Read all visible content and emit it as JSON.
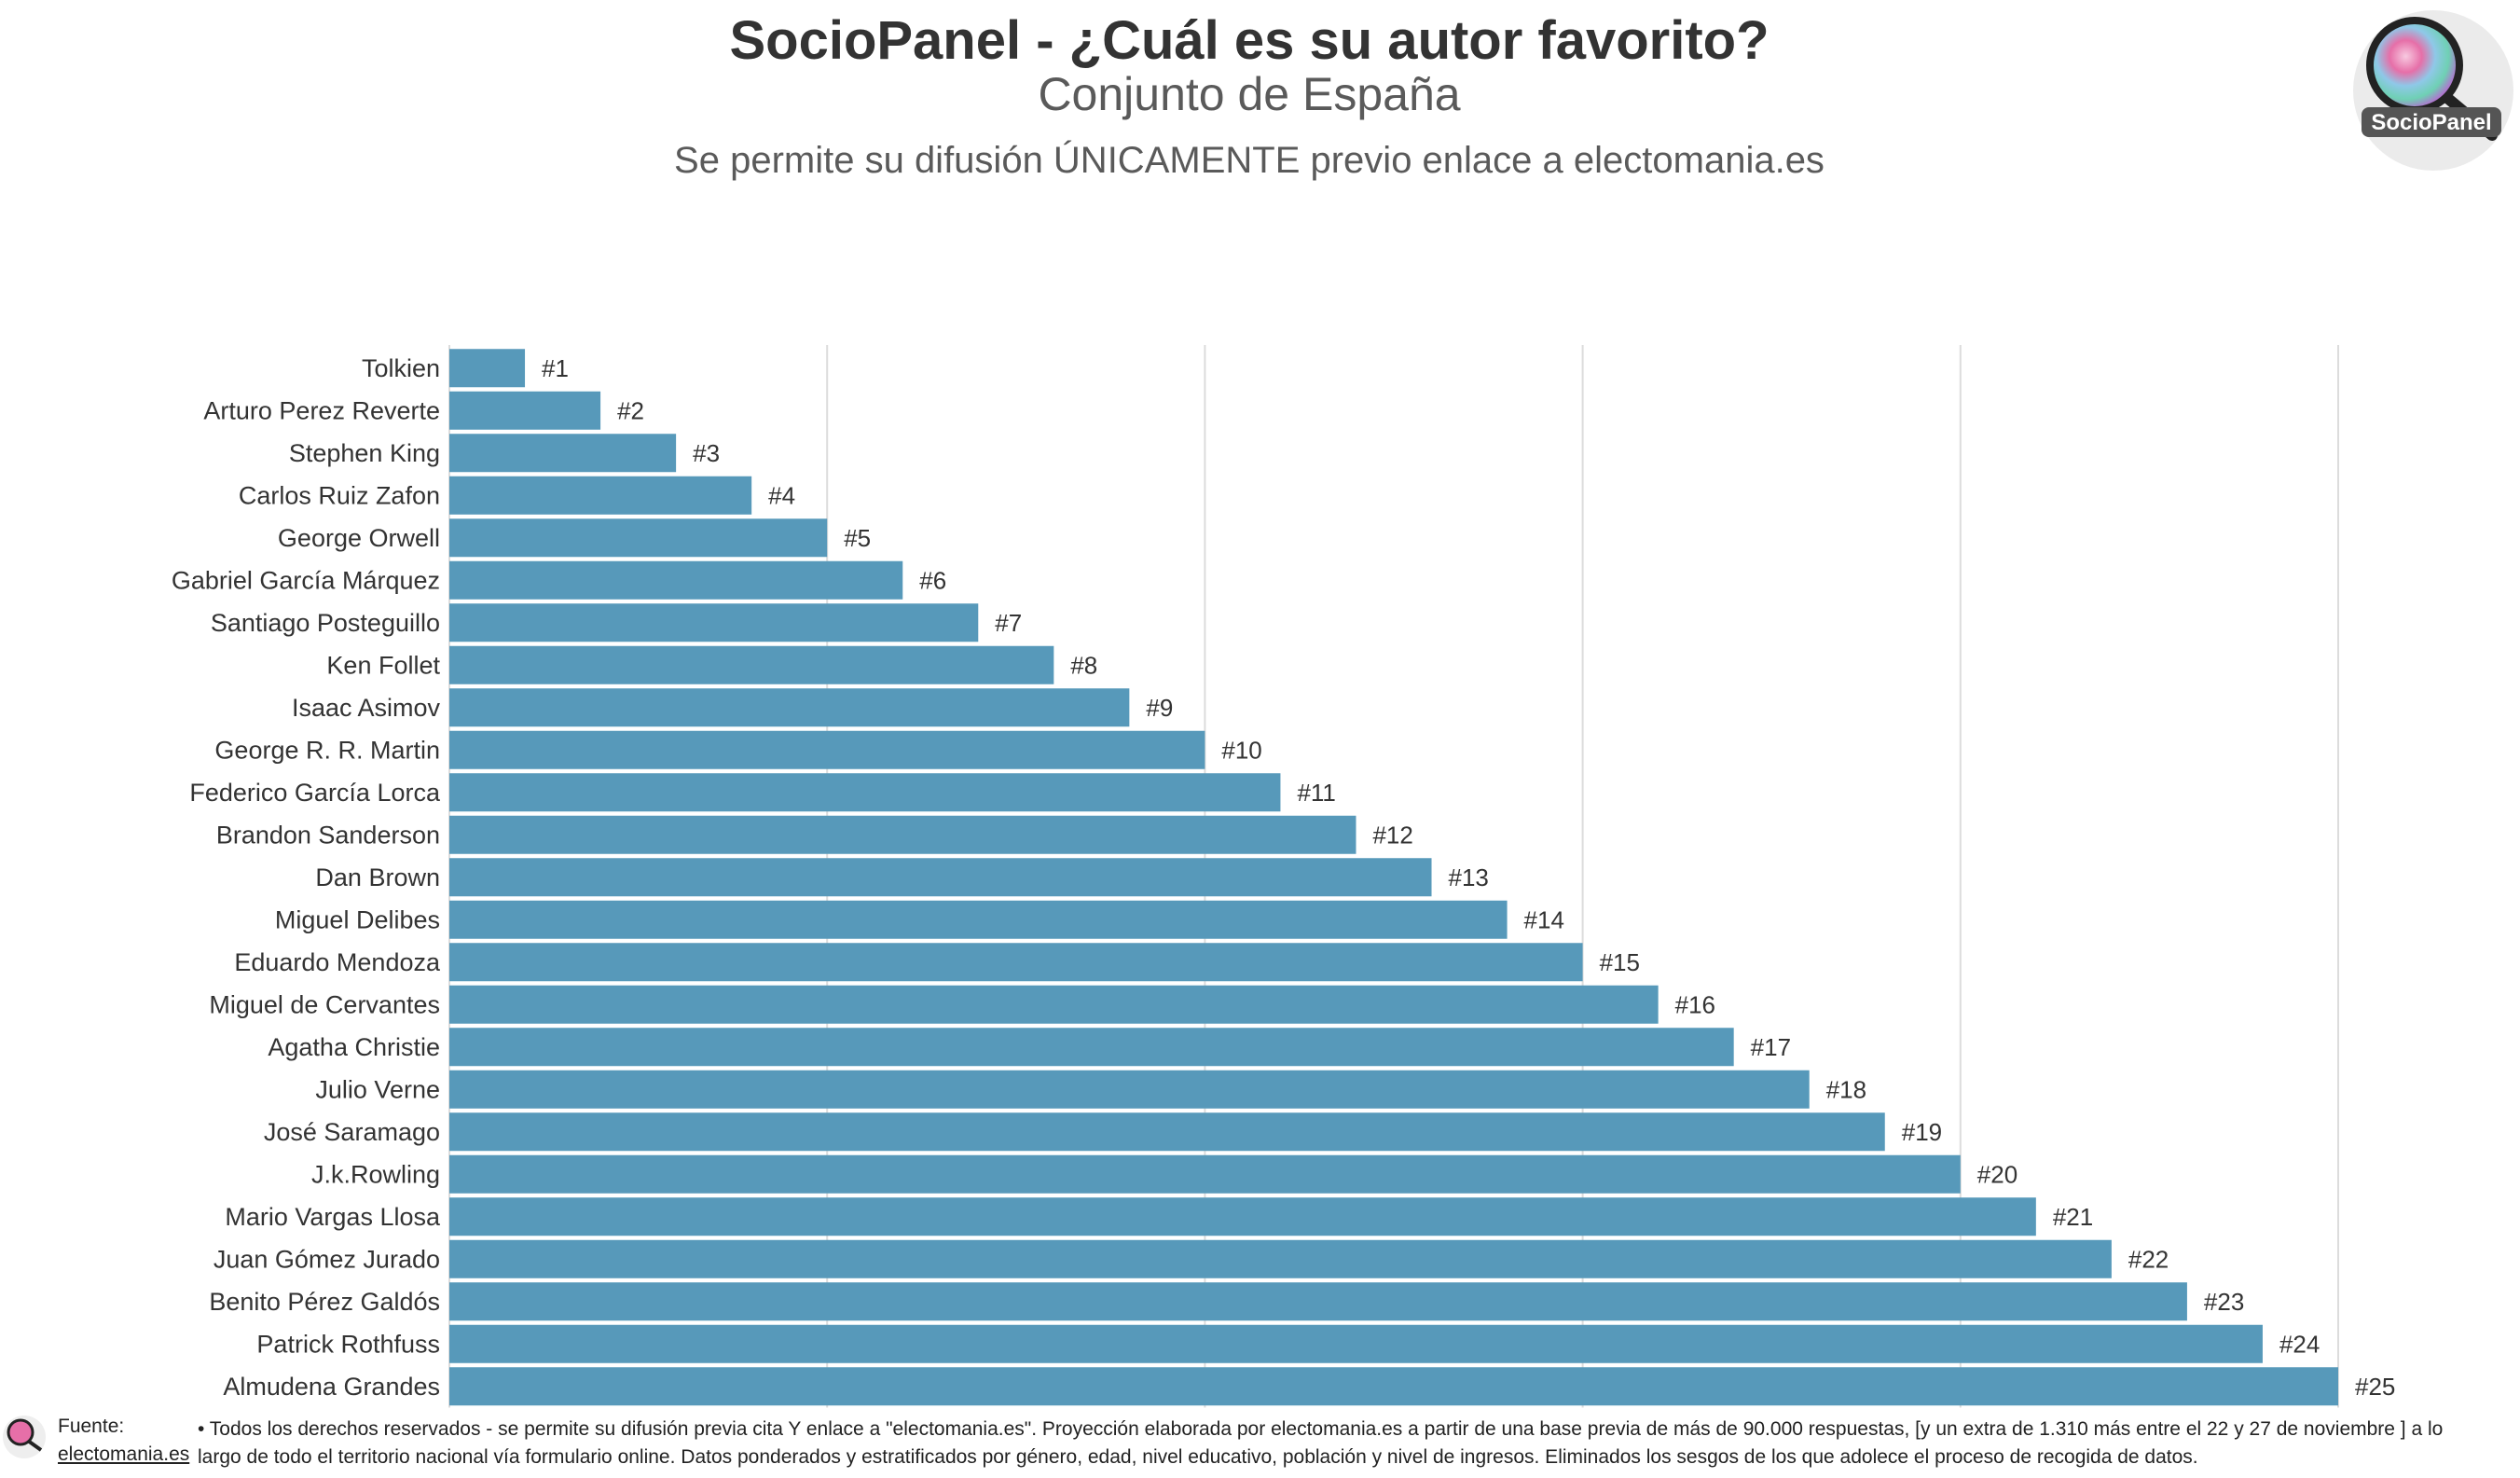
{
  "header": {
    "title": "SocioPanel - ¿Cuál es su autor favorito?",
    "subtitle": "Conjunto de España",
    "notice": "Se permite su difusión ÚNICAMENTE previo enlace a electomania.es"
  },
  "logo": {
    "text": "SocioPanel",
    "icon": "magnifier-icon"
  },
  "colors": {
    "bar": "#5799ba",
    "grid": "#dcdcdc",
    "text": "#333333"
  },
  "chart_data": {
    "type": "bar",
    "orientation": "horizontal",
    "title": "SocioPanel - ¿Cuál es su autor favorito?",
    "subtitle": "Conjunto de España",
    "categories": [
      "Tolkien",
      "Arturo Perez Reverte",
      "Stephen King",
      "Carlos Ruiz Zafon",
      "George Orwell",
      "Gabriel García Márquez",
      "Santiago Posteguillo",
      "Ken Follet",
      "Isaac Asimov",
      "George R. R. Martin",
      "Federico García Lorca",
      "Brandon Sanderson",
      "Dan Brown",
      "Miguel Delibes",
      "Eduardo Mendoza",
      "Miguel de Cervantes",
      "Agatha Christie",
      "Julio Verne",
      "José Saramago",
      "J.k.Rowling",
      "Mario Vargas Llosa",
      "Juan Gómez Jurado",
      "Benito Pérez Galdós",
      "Patrick Rothfuss",
      "Almudena Grandes"
    ],
    "values": [
      1,
      2,
      3,
      4,
      5,
      6,
      7,
      8,
      9,
      10,
      11,
      12,
      13,
      14,
      15,
      16,
      17,
      18,
      19,
      20,
      21,
      22,
      23,
      24,
      25
    ],
    "data_labels": [
      "#1",
      "#2",
      "#3",
      "#4",
      "#5",
      "#6",
      "#7",
      "#8",
      "#9",
      "#10",
      "#11",
      "#12",
      "#13",
      "#14",
      "#15",
      "#16",
      "#17",
      "#18",
      "#19",
      "#20",
      "#21",
      "#22",
      "#23",
      "#24",
      "#25"
    ],
    "xlim": [
      0,
      25
    ],
    "gridlines": [
      0,
      5,
      10,
      15,
      20,
      25
    ],
    "grid": true,
    "legend": "none"
  },
  "footer": {
    "source_label": "Fuente:",
    "source_link": "electomania.es",
    "line1": "• Todos los derechos reservados - se permite su difusión previa cita Y enlace a \"electomania.es\". Proyección elaborada por electomania.es a partir de una base previa de más de 90.000 respuestas, [y un extra de 1.310 más entre el 22 y 27 de noviembre ] a lo",
    "line2": "largo de todo el territorio nacional vía formulario online. Datos ponderados y estratificados por género, edad, nivel educativo, población y nivel de ingresos. Eliminados los sesgos de los que adolece el proceso de recogida de datos."
  }
}
